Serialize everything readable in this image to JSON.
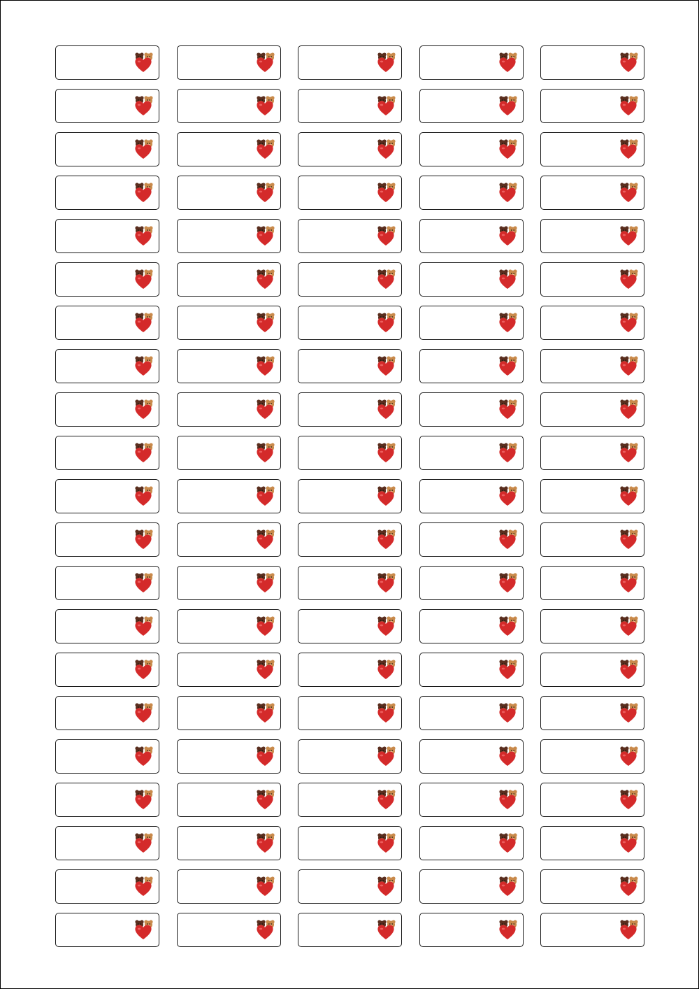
{
  "sheet": {
    "columns": 5,
    "rows": 21,
    "label_icon": "teddy-bears-heart-icon",
    "colors": {
      "border": "#1a1a1a",
      "heart": "#d42a2a",
      "heart_highlight": "#f26d6d",
      "bear_dark": "#5a2e1e",
      "bear_light": "#c98a4b"
    }
  }
}
